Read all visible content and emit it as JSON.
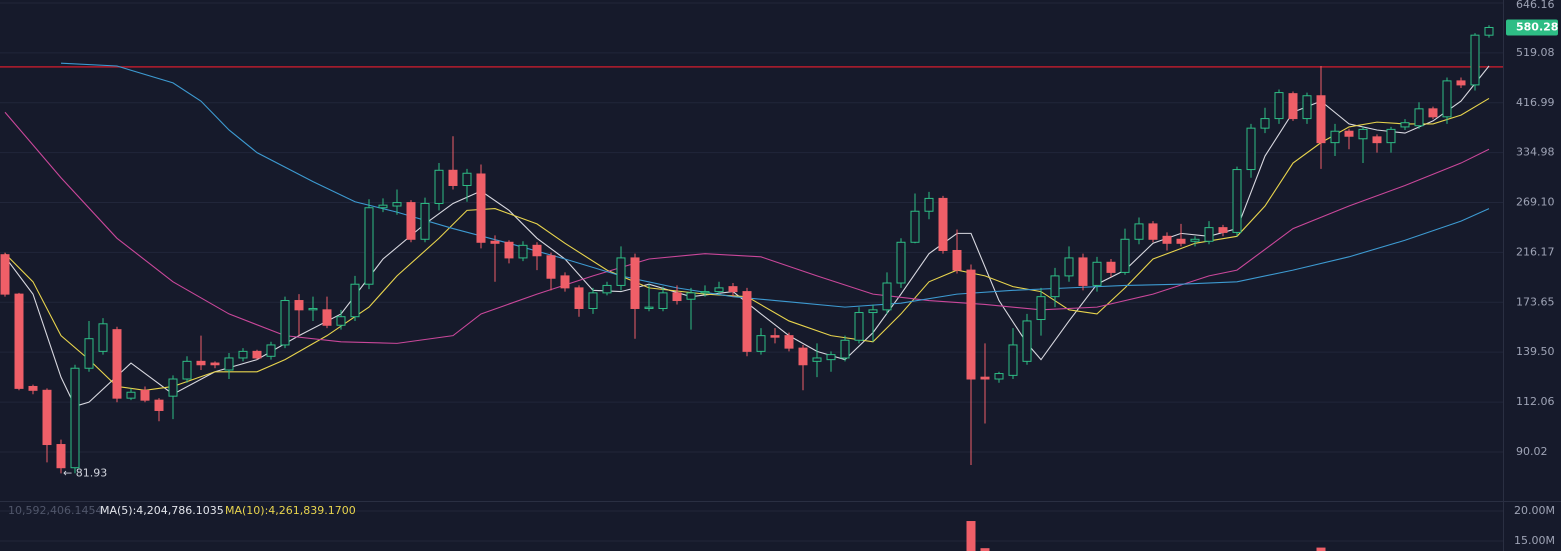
{
  "chart_data": {
    "type": "candlestick",
    "log_scale": true,
    "grid": true,
    "up_color": "#2ebd85",
    "down_color": "#ef5f68",
    "ylim": [
      72.9,
      654.7
    ],
    "yticks": [
      646.16,
      519.08,
      416.99,
      334.98,
      {
        "value": 269.1,
        "label": "269.10"
      },
      216.17,
      173.65,
      {
        "value": 139.5,
        "label": "139.50"
      },
      112.06,
      90.02
    ],
    "open": [
      214,
      180,
      120,
      118,
      93,
      84,
      130,
      140,
      154,
      114,
      118,
      113,
      115,
      124,
      134,
      133,
      129,
      136,
      140,
      137,
      144,
      175,
      168,
      168,
      157,
      163,
      188,
      263,
      265,
      269,
      229,
      268,
      310,
      290,
      305,
      227,
      226,
      211,
      223,
      213,
      195,
      185,
      169,
      181,
      187,
      211,
      169,
      169,
      181,
      176,
      181,
      182,
      186,
      182,
      140,
      150,
      150,
      142,
      134,
      135,
      136,
      147,
      166,
      168,
      189,
      226,
      259,
      274,
      218,
      200,
      125,
      124,
      126,
      134,
      161,
      178,
      195,
      211,
      187,
      207,
      198,
      229,
      245,
      232,
      229,
      227,
      227,
      241,
      236,
      311,
      373,
      389,
      434,
      389,
      430,
      350,
      368,
      356,
      359,
      350,
      375,
      377,
      406,
      392,
      459,
      451,
      561
    ],
    "high": [
      216,
      181,
      121,
      119,
      95,
      132,
      160,
      162,
      156,
      119,
      120,
      114,
      126,
      137,
      150,
      134,
      139,
      142,
      141,
      146,
      178,
      180,
      178,
      178,
      168,
      195,
      273,
      274,
      285,
      272,
      275,
      320,
      360,
      312,
      318,
      233,
      228,
      227,
      226,
      216,
      198,
      187,
      185,
      190,
      222,
      215,
      188,
      186,
      187,
      185,
      187,
      190,
      189,
      185,
      155,
      155,
      152,
      144,
      145,
      140,
      150,
      170,
      172,
      198,
      230,
      280,
      282,
      277,
      239,
      205,
      145,
      128,
      155,
      165,
      185,
      202,
      222,
      215,
      212,
      210,
      240,
      252,
      248,
      236,
      245,
      232,
      248,
      244,
      315,
      380,
      408,
      442,
      438,
      436,
      490,
      380,
      372,
      375,
      363,
      375,
      388,
      418,
      410,
      466,
      466,
      566,
      586
    ],
    "low": [
      178,
      118,
      116,
      86,
      81.93,
      82,
      128,
      138,
      112,
      113,
      112,
      103,
      104,
      122,
      129,
      130,
      124,
      134,
      135,
      135,
      142,
      150,
      160,
      155,
      154,
      160,
      184,
      258,
      255,
      226,
      226,
      260,
      285,
      270,
      220,
      190,
      206,
      208,
      200,
      183,
      182,
      163,
      165,
      179,
      183,
      148,
      167,
      167,
      172,
      154,
      178,
      180,
      178,
      137,
      138,
      145,
      140,
      118,
      125,
      128,
      134,
      145,
      146,
      165,
      185,
      225,
      250,
      215,
      197,
      85,
      102,
      122,
      124,
      132,
      150,
      170,
      190,
      183,
      182,
      194,
      196,
      224,
      226,
      218,
      222,
      222,
      224,
      232,
      232,
      300,
      365,
      380,
      385,
      380,
      312,
      330,
      340,
      320,
      335,
      335,
      370,
      372,
      388,
      380,
      445,
      440,
      555
    ],
    "close": [
      180,
      119,
      118,
      93,
      84,
      130,
      148,
      158,
      114,
      117,
      113,
      108,
      124,
      134,
      132,
      132,
      136,
      140,
      136,
      144,
      175,
      168,
      169,
      157,
      163,
      188,
      263,
      266,
      269,
      229,
      268,
      310,
      290,
      306,
      226,
      225,
      211,
      223,
      213,
      193,
      185,
      169,
      181,
      187,
      211,
      169,
      170,
      181,
      175,
      181,
      182,
      185,
      182,
      140,
      150,
      149,
      142,
      132,
      136,
      138,
      147,
      166,
      168,
      189,
      226,
      259,
      274,
      218,
      200,
      124,
      124,
      127,
      144,
      160,
      178,
      195,
      211,
      187,
      207,
      198,
      229,
      245,
      229,
      225,
      225,
      229,
      241,
      236,
      311,
      373,
      389,
      436,
      389,
      430,
      350,
      368,
      360,
      371,
      350,
      371,
      382,
      406,
      392,
      459,
      451,
      561,
      580.28
    ],
    "low_annotation": "← 81.93",
    "price_line": {
      "value": 488.2,
      "color": "#b71c2c"
    },
    "ma_lines": [
      {
        "color": "#d8d8e0",
        "x": [
          0,
          2,
          4,
          5,
          6,
          9,
          12,
          15,
          18,
          21,
          24,
          27,
          30,
          32,
          34,
          36,
          38,
          40,
          42,
          44,
          46,
          49,
          52,
          54,
          56,
          58,
          60,
          62,
          64,
          66,
          68,
          69,
          71,
          73,
          74,
          76,
          78,
          80,
          82,
          84,
          86,
          88,
          90,
          92,
          94,
          96,
          98,
          100,
          102,
          104,
          106
        ],
        "values": [
          212,
          180,
          125,
          110,
          112,
          133,
          116,
          128,
          135,
          150,
          165,
          210,
          245,
          268,
          283,
          260,
          230,
          210,
          183,
          182,
          188,
          178,
          182,
          165,
          150,
          140,
          135,
          152,
          180,
          215,
          235,
          235,
          175,
          145,
          135,
          160,
          188,
          200,
          225,
          235,
          232,
          240,
          330,
          400,
          420,
          380,
          370,
          365,
          385,
          420,
          490
        ]
      },
      {
        "color": "#e8d44d",
        "x": [
          0,
          2,
          4,
          6,
          8,
          10,
          12,
          15,
          18,
          20,
          23,
          26,
          28,
          31,
          33,
          35,
          38,
          40,
          43,
          46,
          50,
          53,
          56,
          59,
          62,
          64,
          66,
          68,
          70,
          72,
          74,
          76,
          78,
          80,
          82,
          85,
          88,
          90,
          92,
          94,
          96,
          98,
          100,
          102,
          104,
          106
        ],
        "values": [
          215,
          190,
          150,
          135,
          120,
          118,
          120,
          128,
          128,
          135,
          150,
          170,
          195,
          230,
          260,
          262,
          245,
          225,
          200,
          185,
          180,
          178,
          160,
          150,
          146,
          165,
          190,
          200,
          195,
          186,
          182,
          168,
          165,
          185,
          210,
          225,
          232,
          265,
          320,
          350,
          375,
          383,
          380,
          380,
          395,
          425
        ]
      },
      {
        "color": "#c9479a",
        "x": [
          0,
          4,
          8,
          12,
          16,
          20,
          24,
          28,
          32,
          34,
          38,
          42,
          46,
          50,
          54,
          58,
          62,
          66,
          70,
          74,
          78,
          82,
          86,
          88,
          92,
          96,
          100,
          104,
          106
        ],
        "values": [
          400,
          300,
          230,
          190,
          165,
          150,
          146,
          145,
          150,
          165,
          180,
          195,
          210,
          215,
          212,
          195,
          180,
          175,
          172,
          168,
          170,
          180,
          195,
          200,
          240,
          265,
          290,
          320,
          340
        ]
      },
      {
        "color": "#3d9ad1",
        "x": [
          4,
          8,
          12,
          14,
          16,
          18,
          22,
          25,
          28,
          32,
          36,
          40,
          44,
          48,
          52,
          56,
          60,
          64,
          68,
          72,
          76,
          80,
          84,
          88,
          92,
          96,
          100,
          104,
          106
        ],
        "values": [
          496,
          490,
          455,
          420,
          370,
          335,
          295,
          270,
          258,
          240,
          225,
          210,
          195,
          185,
          178,
          174,
          170,
          173,
          180,
          183,
          185,
          187,
          188,
          190,
          200,
          212,
          228,
          248,
          262
        ]
      }
    ],
    "volume": {
      "color": "#ef5f68",
      "ylim": [
        13330000,
        21670000
      ],
      "yticks": [
        {
          "value": 20000000,
          "label": "20.00M"
        },
        {
          "value": 15000000,
          "label": "15.00M"
        }
      ],
      "x": [
        69,
        70,
        94
      ],
      "values": [
        18330000,
        13800000,
        13900000
      ],
      "labels": [
        "10,592,406.1454",
        "MA(5):4,204,786.1035",
        "MA(10):4,261,839.1700"
      ]
    }
  }
}
